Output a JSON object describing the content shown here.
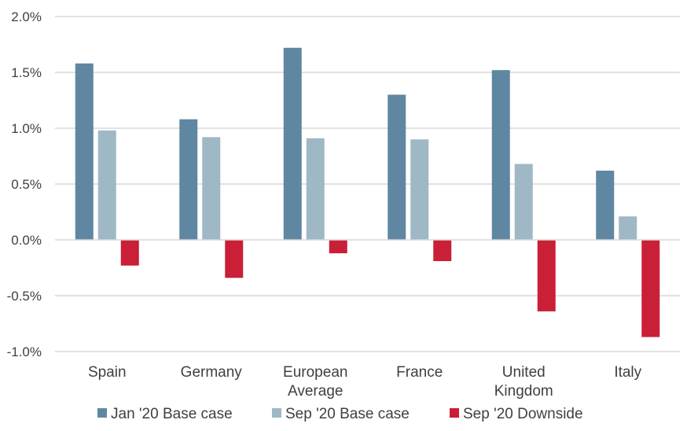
{
  "chart_data": {
    "type": "bar",
    "categories": [
      [
        "Spain"
      ],
      [
        "Germany"
      ],
      [
        "European",
        "Average"
      ],
      [
        "France"
      ],
      [
        "United",
        "Kingdom"
      ],
      [
        "Italy"
      ]
    ],
    "series": [
      {
        "name": "Jan '20 Base case",
        "color": "#5f87a2",
        "values": [
          1.58,
          1.08,
          1.72,
          1.3,
          1.52,
          0.62
        ]
      },
      {
        "name": "Sep '20 Base case",
        "color": "#9fb8c6",
        "values": [
          0.98,
          0.92,
          0.91,
          0.9,
          0.68,
          0.21
        ]
      },
      {
        "name": "Sep '20 Downside",
        "color": "#c91f37",
        "values": [
          -0.23,
          -0.34,
          -0.12,
          -0.19,
          -0.64,
          -0.87
        ]
      }
    ],
    "ylim": [
      -1.0,
      2.0
    ],
    "yticks": [
      2.0,
      1.5,
      1.0,
      0.5,
      0.0,
      -0.5,
      -1.0
    ],
    "ytick_labels": [
      "2.0%",
      "1.5%",
      "1.0%",
      "0.5%",
      "0.0%",
      "-0.5%",
      "-1.0%"
    ],
    "grid": true,
    "legend_position": "bottom",
    "title": "",
    "xlabel": "",
    "ylabel": ""
  }
}
